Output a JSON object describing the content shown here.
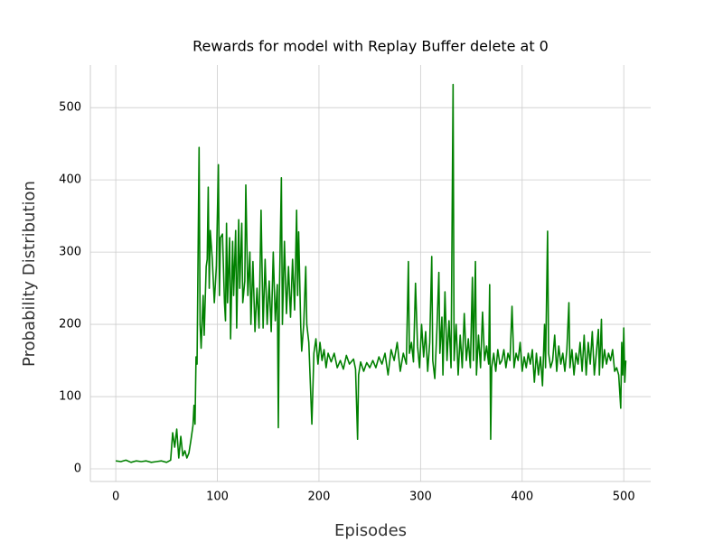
{
  "chart_data": {
    "type": "line",
    "title": "Rewards for model with Replay Buffer delete at 0",
    "xlabel": "Episodes",
    "ylabel": "Probability Distribution",
    "xlim": [
      -25,
      526.5
    ],
    "ylim": [
      -17.5,
      559
    ],
    "xticks": [
      0,
      100,
      200,
      300,
      400,
      500
    ],
    "yticks": [
      0,
      100,
      200,
      300,
      400,
      500
    ],
    "grid": true,
    "series": [
      {
        "name": "Rewards",
        "color": "#008000",
        "x": [
          0,
          5,
          10,
          15,
          20,
          25,
          30,
          35,
          40,
          45,
          50,
          54,
          56,
          58,
          60,
          62,
          64,
          66,
          68,
          70,
          72,
          74,
          76,
          77,
          78,
          79,
          80,
          82,
          83,
          84,
          86,
          87,
          89,
          90,
          91,
          92,
          93,
          95,
          97,
          99,
          101,
          102,
          103,
          105,
          107,
          108,
          109,
          110,
          112,
          113,
          115,
          116,
          118,
          119,
          121,
          122,
          124,
          125,
          127,
          128,
          130,
          132,
          133,
          135,
          137,
          139,
          141,
          143,
          145,
          147,
          149,
          151,
          153,
          155,
          157,
          159,
          160,
          161,
          163,
          164,
          166,
          168,
          170,
          172,
          174,
          176,
          178,
          179,
          180,
          182,
          183,
          185,
          187,
          188,
          190,
          193,
          195,
          197,
          199,
          201,
          203,
          205,
          207,
          209,
          212,
          215,
          218,
          221,
          224,
          227,
          230,
          234,
          236,
          238,
          239,
          241,
          244,
          247,
          250,
          253,
          256,
          259,
          262,
          265,
          268,
          271,
          274,
          277,
          280,
          283,
          286,
          288,
          289,
          291,
          293,
          295,
          297,
          299,
          301,
          303,
          305,
          307,
          309,
          311,
          312,
          314,
          316,
          318,
          319,
          321,
          322,
          324,
          326,
          328,
          330,
          332,
          333,
          335,
          337,
          339,
          341,
          343,
          345,
          347,
          349,
          351,
          352,
          354,
          355,
          357,
          359,
          361,
          363,
          365,
          367,
          368,
          369,
          370,
          372,
          374,
          376,
          378,
          380,
          382,
          384,
          386,
          388,
          390,
          392,
          394,
          396,
          398,
          400,
          402,
          404,
          406,
          408,
          410,
          412,
          414,
          416,
          418,
          420,
          422,
          423,
          425,
          426,
          428,
          430,
          432,
          434,
          436,
          438,
          440,
          442,
          444,
          446,
          447,
          449,
          451,
          453,
          455,
          457,
          459,
          461,
          463,
          465,
          467,
          469,
          471,
          473,
          475,
          476,
          478,
          479,
          481,
          483,
          485,
          487,
          489,
          491,
          493,
          495,
          497,
          498,
          499,
          500,
          501,
          502
        ],
        "values": [
          11,
          10,
          12,
          9,
          11,
          10,
          11,
          9,
          10,
          11,
          9,
          12,
          50,
          30,
          55,
          15,
          45,
          18,
          25,
          15,
          22,
          40,
          60,
          88,
          62,
          155,
          145,
          445,
          200,
          167,
          240,
          185,
          280,
          290,
          390,
          250,
          330,
          290,
          230,
          280,
          421,
          240,
          320,
          325,
          230,
          205,
          340,
          230,
          320,
          180,
          315,
          240,
          330,
          195,
          345,
          250,
          340,
          230,
          260,
          393,
          240,
          300,
          200,
          287,
          190,
          250,
          195,
          358,
          195,
          290,
          200,
          260,
          190,
          300,
          205,
          255,
          57,
          240,
          403,
          200,
          315,
          215,
          280,
          210,
          290,
          220,
          358,
          240,
          328,
          200,
          163,
          200,
          280,
          200,
          175,
          62,
          160,
          180,
          145,
          175,
          150,
          165,
          140,
          160,
          148,
          160,
          140,
          150,
          138,
          157,
          145,
          152,
          138,
          41,
          130,
          148,
          135,
          147,
          140,
          150,
          140,
          155,
          145,
          160,
          130,
          165,
          150,
          175,
          135,
          160,
          145,
          287,
          160,
          175,
          148,
          257,
          170,
          140,
          200,
          155,
          190,
          135,
          175,
          294,
          150,
          125,
          190,
          272,
          160,
          210,
          130,
          245,
          150,
          205,
          140,
          532,
          150,
          200,
          130,
          185,
          140,
          215,
          150,
          180,
          140,
          265,
          150,
          287,
          130,
          185,
          140,
          217,
          150,
          170,
          145,
          255,
          41,
          140,
          160,
          135,
          165,
          145,
          150,
          165,
          140,
          160,
          150,
          225,
          140,
          160,
          150,
          175,
          135,
          155,
          140,
          160,
          145,
          165,
          120,
          160,
          130,
          155,
          115,
          200,
          140,
          329,
          160,
          140,
          150,
          185,
          135,
          170,
          145,
          160,
          135,
          165,
          230,
          140,
          165,
          130,
          160,
          145,
          175,
          135,
          185,
          130,
          175,
          145,
          190,
          130,
          160,
          193,
          130,
          207,
          140,
          165,
          145,
          160,
          150,
          165,
          135,
          140,
          130,
          84,
          175,
          130,
          195,
          120,
          150
        ]
      }
    ]
  }
}
